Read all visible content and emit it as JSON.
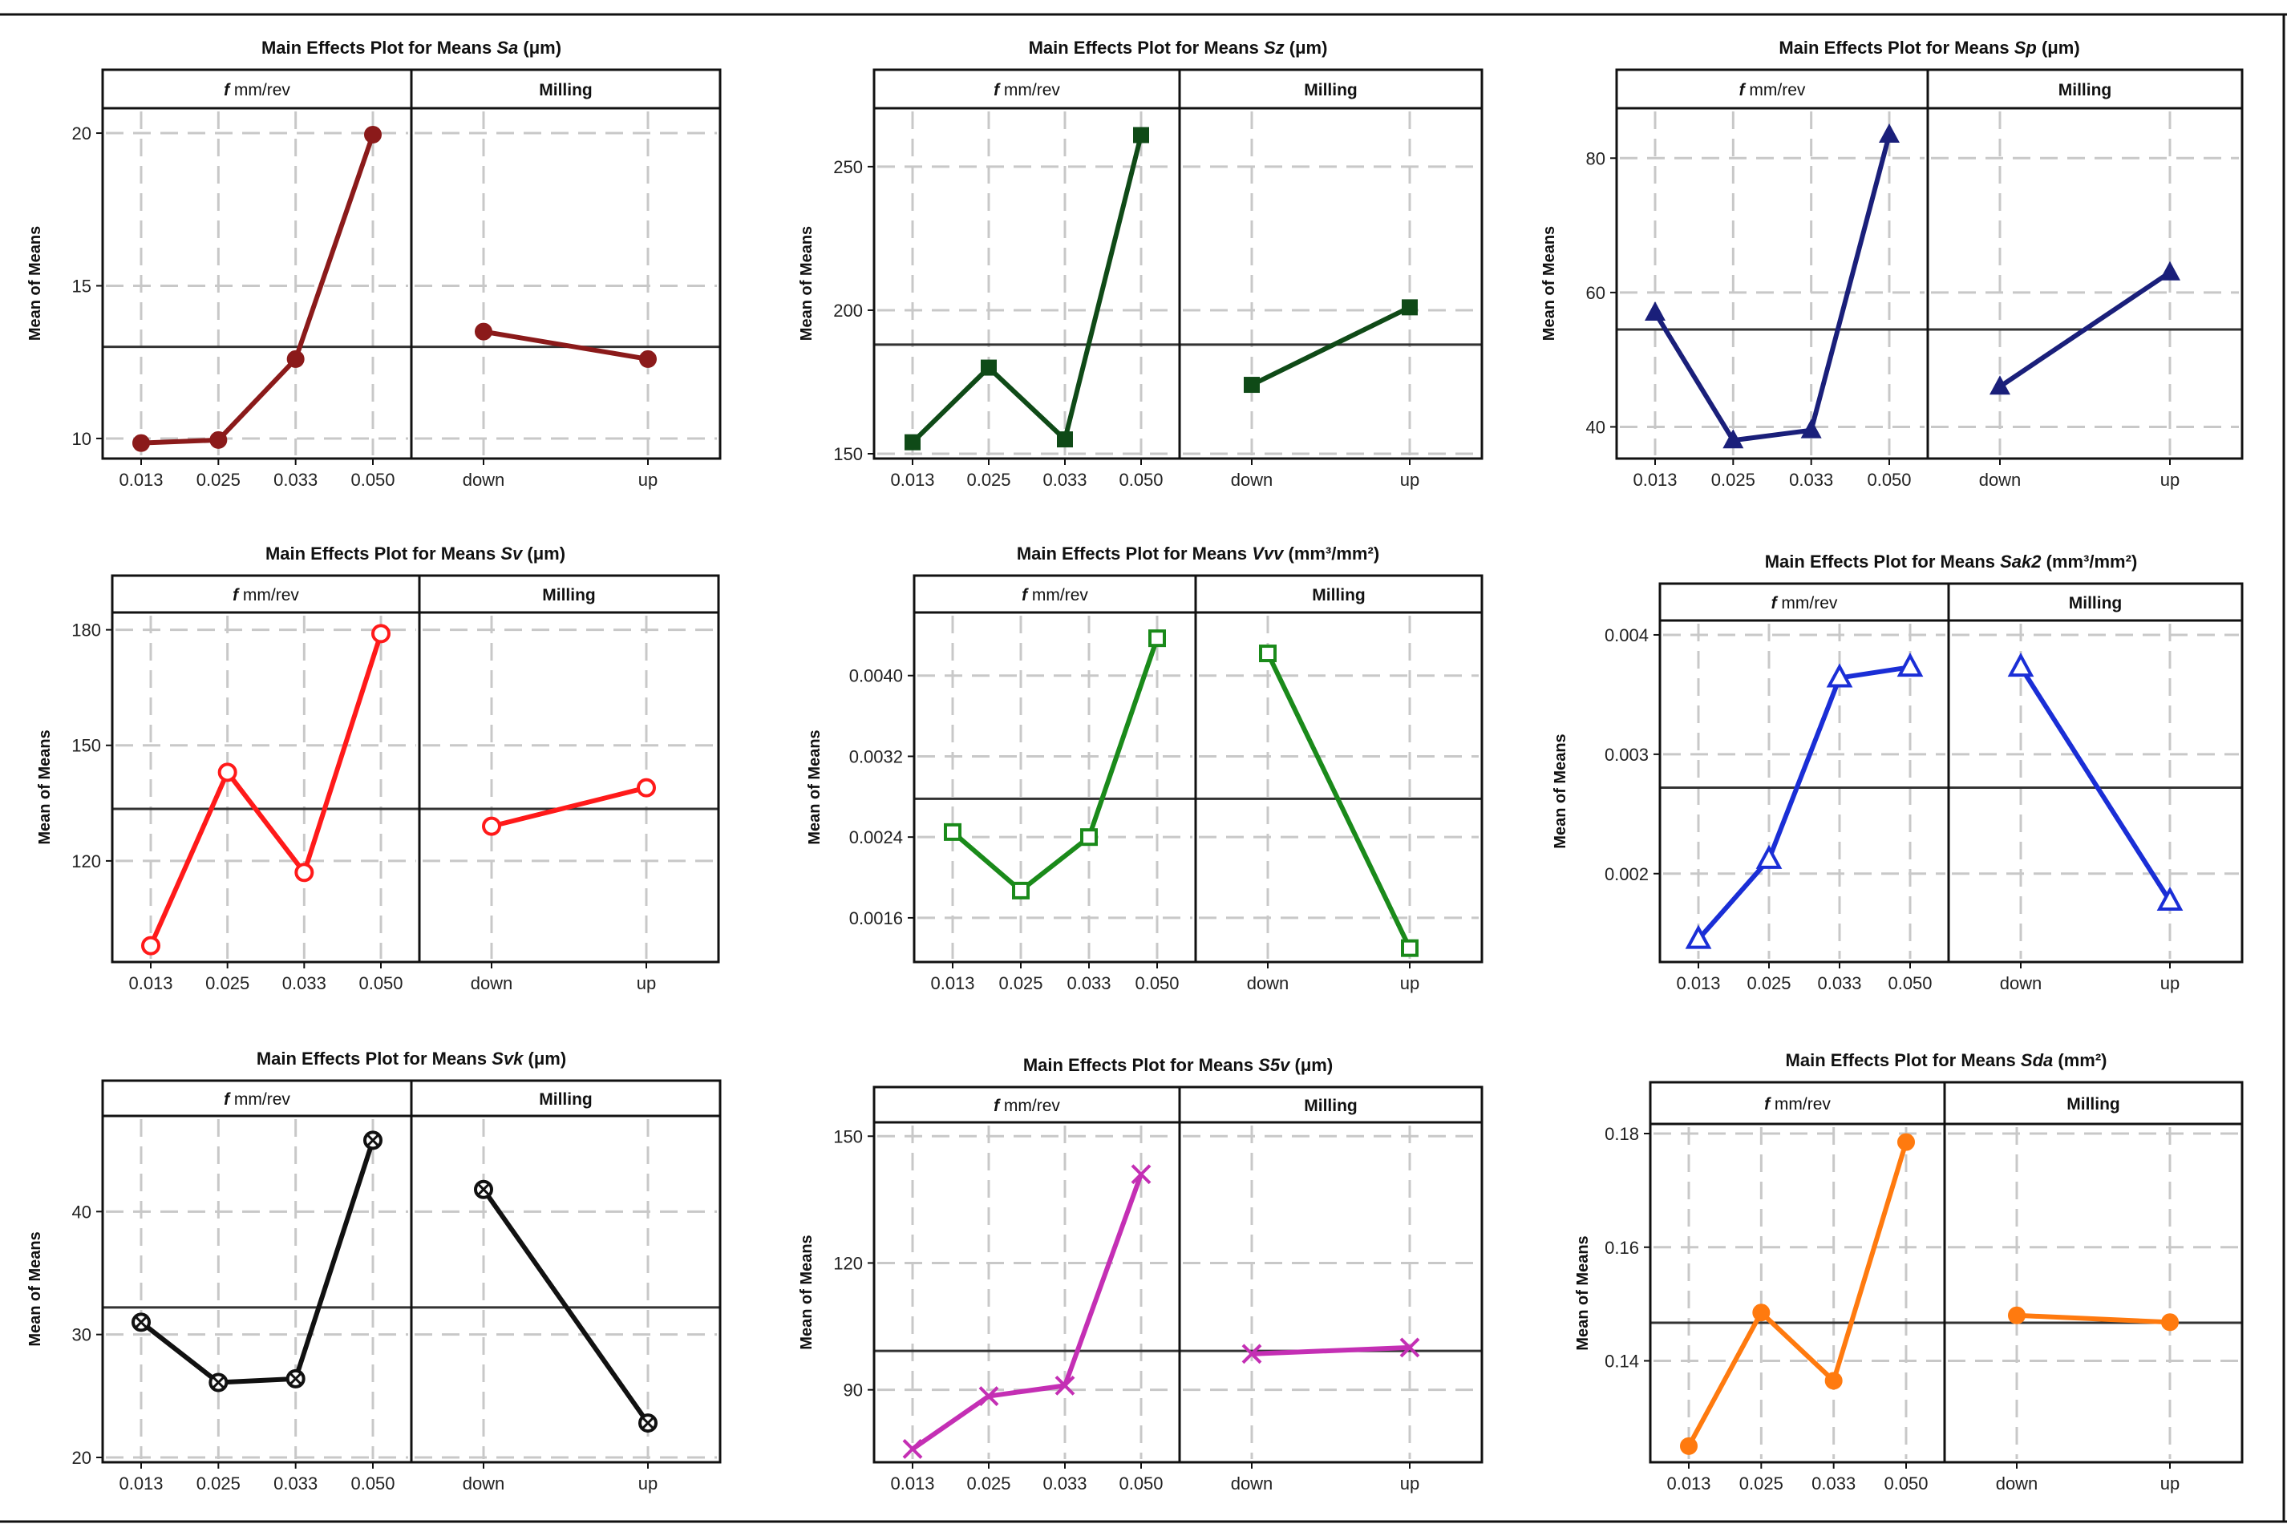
{
  "chart_data": [
    {
      "type": "line",
      "title": "Main Effects Plot for Means Sa (μm)",
      "title_parts": [
        "Main Effects Plot for Means ",
        "Sa",
        " (μm)"
      ],
      "ylabel": "Mean of Means",
      "panel_labels": [
        "mm/rev",
        "Milling"
      ],
      "factor_symbol": "f",
      "color": "#8b1a1a",
      "marker": "circle-filled",
      "ylim": [
        9.5,
        20.5
      ],
      "yticks": [
        "10",
        "15",
        "20"
      ],
      "ytick_values": [
        10,
        15,
        20
      ],
      "factor1": {
        "categories": [
          "0.013",
          "0.025",
          "0.033",
          "0.050"
        ],
        "values": [
          9.85,
          9.95,
          12.6,
          19.95
        ]
      },
      "factor2": {
        "categories": [
          "down",
          "up"
        ],
        "values": [
          13.5,
          12.6
        ]
      },
      "grand_mean": 13.0
    },
    {
      "type": "line",
      "title": "Main Effects Plot for Means Sz (μm)",
      "title_parts": [
        "Main Effects Plot for Means ",
        "Sz",
        " (μm)"
      ],
      "ylabel": "Mean of Means",
      "panel_labels": [
        "mm/rev",
        "Milling"
      ],
      "factor_symbol": "f",
      "color": "#0f4a17",
      "marker": "square-filled",
      "ylim": [
        150,
        267
      ],
      "yticks": [
        "150",
        "200",
        "250"
      ],
      "ytick_values": [
        150,
        200,
        250
      ],
      "factor1": {
        "categories": [
          "0.013",
          "0.025",
          "0.033",
          "0.050"
        ],
        "values": [
          154,
          180,
          155,
          261
        ]
      },
      "factor2": {
        "categories": [
          "down",
          "up"
        ],
        "values": [
          174,
          201
        ]
      },
      "grand_mean": 188
    },
    {
      "type": "line",
      "title": "Main Effects Plot for Means Sp (μm)",
      "title_parts": [
        "Main Effects Plot for Means ",
        "Sp",
        " (μm)"
      ],
      "ylabel": "Mean of Means",
      "panel_labels": [
        "mm/rev",
        "Milling"
      ],
      "factor_symbol": "f",
      "color": "#1a1f7a",
      "marker": "triangle-filled",
      "ylim": [
        36,
        86
      ],
      "yticks": [
        "40",
        "60",
        "80"
      ],
      "ytick_values": [
        40,
        60,
        80
      ],
      "factor1": {
        "categories": [
          "0.013",
          "0.025",
          "0.033",
          "0.050"
        ],
        "values": [
          57,
          38,
          39.5,
          83.5
        ]
      },
      "factor2": {
        "categories": [
          "down",
          "up"
        ],
        "values": [
          46,
          63
        ]
      },
      "grand_mean": 54.5
    },
    {
      "type": "line",
      "title": "Main Effects Plot for Means Sv (μm)",
      "title_parts": [
        "Main Effects Plot for Means ",
        "Sv",
        " (μm)"
      ],
      "ylabel": "Mean of Means",
      "panel_labels": [
        "mm/rev",
        "Milling"
      ],
      "factor_symbol": "f",
      "color": "#ff1a1a",
      "marker": "circle-open",
      "ylim": [
        95,
        182
      ],
      "yticks": [
        "120",
        "150",
        "180"
      ],
      "ytick_values": [
        120,
        150,
        180
      ],
      "factor1": {
        "categories": [
          "0.013",
          "0.025",
          "0.033",
          "0.050"
        ],
        "values": [
          98,
          143,
          117,
          179
        ]
      },
      "factor2": {
        "categories": [
          "down",
          "up"
        ],
        "values": [
          129,
          139
        ]
      },
      "grand_mean": 133.5
    },
    {
      "type": "line",
      "title": "Main Effects Plot for Means Vvv (mm³/mm²)",
      "title_parts": [
        "Main Effects Plot for Means ",
        "Vvv",
        " (mm³/mm²)"
      ],
      "ylabel": "Mean of Means",
      "panel_labels": [
        "mm/rev",
        "Milling"
      ],
      "factor_symbol": "f",
      "color": "#1a8a1a",
      "marker": "square-open",
      "ylim": [
        0.00121,
        0.00453
      ],
      "yticks": [
        "0.0016",
        "0.0024",
        "0.0032",
        "0.0040"
      ],
      "ytick_values": [
        0.0016,
        0.0024,
        0.0032,
        0.004
      ],
      "factor1": {
        "categories": [
          "0.013",
          "0.025",
          "0.033",
          "0.050"
        ],
        "values": [
          0.00245,
          0.00187,
          0.0024,
          0.00437
        ]
      },
      "factor2": {
        "categories": [
          "down",
          "up"
        ],
        "values": [
          0.00422,
          0.0013
        ]
      },
      "grand_mean": 0.00278
    },
    {
      "type": "line",
      "title": "Main Effects Plot for Means Sak2 (mm³/mm²)",
      "title_parts": [
        "Main Effects Plot for Means ",
        "Sak2",
        " (mm³/mm²)"
      ],
      "ylabel": "Mean of Means",
      "panel_labels": [
        "mm/rev",
        "Milling"
      ],
      "factor_symbol": "f",
      "color": "#1a2ed6",
      "marker": "triangle-open",
      "ylim": [
        0.0013,
        0.00404
      ],
      "yticks": [
        "0.002",
        "0.003",
        "0.004"
      ],
      "ytick_values": [
        0.002,
        0.003,
        0.004
      ],
      "factor1": {
        "categories": [
          "0.013",
          "0.025",
          "0.033",
          "0.050"
        ],
        "values": [
          0.00145,
          0.00212,
          0.00364,
          0.00373
        ]
      },
      "factor2": {
        "categories": [
          "down",
          "up"
        ],
        "values": [
          0.00373,
          0.00177
        ]
      },
      "grand_mean": 0.00272
    },
    {
      "type": "line",
      "title": "Main Effects Plot for Means Svk (μm)",
      "title_parts": [
        "Main Effects Plot for Means ",
        "Svk",
        " (μm)"
      ],
      "ylabel": "Mean of Means",
      "panel_labels": [
        "mm/rev",
        "Milling"
      ],
      "factor_symbol": "f",
      "color": "#111111",
      "marker": "circle-cross",
      "ylim": [
        20,
        47
      ],
      "yticks": [
        "20",
        "30",
        "40"
      ],
      "ytick_values": [
        20,
        30,
        40
      ],
      "factor1": {
        "categories": [
          "0.013",
          "0.025",
          "0.033",
          "0.050"
        ],
        "values": [
          31,
          26.1,
          26.4,
          45.8
        ]
      },
      "factor2": {
        "categories": [
          "down",
          "up"
        ],
        "values": [
          41.8,
          22.8
        ]
      },
      "grand_mean": 32.2
    },
    {
      "type": "line",
      "title": "Main Effects Plot for Means S5v (μm)",
      "title_parts": [
        "Main Effects Plot for Means ",
        "S5v",
        " (μm)"
      ],
      "ylabel": "Mean of Means",
      "panel_labels": [
        "mm/rev",
        "Milling"
      ],
      "factor_symbol": "f",
      "color": "#c42fb4",
      "marker": "x",
      "ylim": [
        74,
        151
      ],
      "yticks": [
        "90",
        "120",
        "150"
      ],
      "ytick_values": [
        90,
        120,
        150
      ],
      "factor1": {
        "categories": [
          "0.013",
          "0.025",
          "0.033",
          "0.050"
        ],
        "values": [
          76,
          88.5,
          91,
          141
        ]
      },
      "factor2": {
        "categories": [
          "down",
          "up"
        ],
        "values": [
          98.5,
          100
        ]
      },
      "grand_mean": 99.2
    },
    {
      "type": "line",
      "title": "Main Effects Plot for Means Sda (mm²)",
      "title_parts": [
        "Main Effects Plot for Means ",
        "Sda",
        " (mm²)"
      ],
      "ylabel": "Mean of Means",
      "panel_labels": [
        "mm/rev",
        "Milling"
      ],
      "factor_symbol": "f",
      "color": "#ff7a0f",
      "marker": "circle-filled",
      "ylim": [
        0.123,
        0.18
      ],
      "yticks": [
        "0.14",
        "0.16",
        "0.18"
      ],
      "ytick_values": [
        0.14,
        0.16,
        0.18
      ],
      "factor1": {
        "categories": [
          "0.013",
          "0.025",
          "0.033",
          "0.050"
        ],
        "values": [
          0.125,
          0.1485,
          0.1365,
          0.1785
        ]
      },
      "factor2": {
        "categories": [
          "down",
          "up"
        ],
        "values": [
          0.148,
          0.1468
        ]
      },
      "grand_mean": 0.1467
    }
  ]
}
